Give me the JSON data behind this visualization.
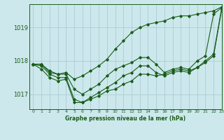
{
  "title": "Graphe pression niveau de la mer (hPa)",
  "bg_color": "#cce8ec",
  "grid_color": "#aacdd4",
  "line_color": "#1a5c1a",
  "xlim": [
    -0.5,
    23
  ],
  "ylim": [
    1016.55,
    1019.7
  ],
  "yticks": [
    1017,
    1018,
    1019
  ],
  "xtick_labels": [
    "0",
    "1",
    "2",
    "3",
    "4",
    "5",
    "6",
    "7",
    "8",
    "9",
    "10",
    "11",
    "12",
    "13",
    "14",
    "15",
    "16",
    "17",
    "18",
    "19",
    "20",
    "21",
    "22",
    "23"
  ],
  "series": [
    [
      1017.9,
      1017.9,
      1017.7,
      1017.6,
      1017.6,
      1017.15,
      1017.0,
      1017.15,
      1017.3,
      1017.55,
      1017.75,
      1017.85,
      1017.95,
      1018.1,
      1018.1,
      1017.9,
      1017.65,
      1017.75,
      1017.8,
      1017.75,
      1018.0,
      1018.15,
      1019.4,
      1019.6
    ],
    [
      1017.9,
      1017.85,
      1017.6,
      1017.5,
      1017.5,
      1016.85,
      1016.75,
      1016.85,
      1016.95,
      1017.1,
      1017.15,
      1017.3,
      1017.4,
      1017.6,
      1017.6,
      1017.55,
      1017.6,
      1017.7,
      1017.75,
      1017.7,
      1017.8,
      1018.0,
      1018.2,
      1019.6
    ],
    [
      1017.9,
      1017.75,
      1017.5,
      1017.4,
      1017.45,
      1016.75,
      1016.75,
      1016.9,
      1017.05,
      1017.2,
      1017.35,
      1017.55,
      1017.65,
      1017.85,
      1017.85,
      1017.65,
      1017.55,
      1017.65,
      1017.7,
      1017.65,
      1017.8,
      1017.95,
      1018.15,
      1019.55
    ],
    [
      1017.9,
      1017.9,
      1017.65,
      1017.6,
      1017.65,
      1017.45,
      1017.55,
      1017.7,
      1017.85,
      1018.05,
      1018.35,
      1018.6,
      1018.85,
      1019.0,
      1019.1,
      1019.15,
      1019.2,
      1019.3,
      1019.35,
      1019.35,
      1019.4,
      1019.45,
      1019.5,
      1019.62
    ]
  ]
}
